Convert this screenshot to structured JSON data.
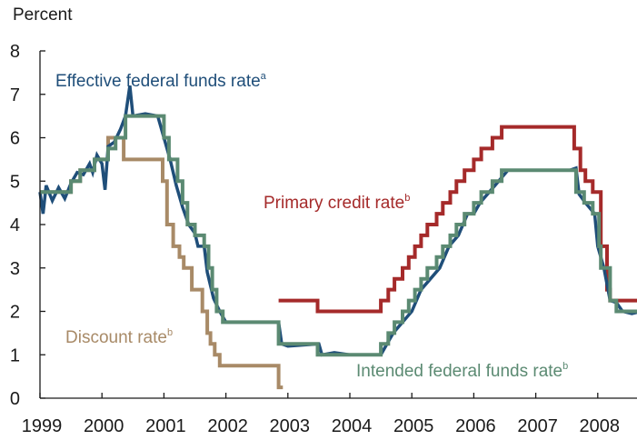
{
  "chart_data": {
    "type": "line",
    "ylabel": "Percent",
    "ylim": [
      0,
      8
    ],
    "xlim": [
      1999,
      2008.75
    ],
    "x_ticks": [
      "1999",
      "2000",
      "2001",
      "2002",
      "2003",
      "2004",
      "2005",
      "2006",
      "2007",
      "2008"
    ],
    "y_ticks": [
      "0",
      "1",
      "2",
      "3",
      "4",
      "5",
      "6",
      "7",
      "8"
    ],
    "grid": false,
    "colors": {
      "effective": "#1f4e79",
      "intended": "#5b8a72",
      "primary": "#a52a2a",
      "discount": "#a88a67"
    },
    "series": [
      {
        "key": "effective",
        "name": "Effective federal funds rate",
        "note": "a",
        "points": [
          [
            1999.0,
            4.75
          ],
          [
            1999.05,
            4.25
          ],
          [
            1999.1,
            4.9
          ],
          [
            1999.2,
            4.55
          ],
          [
            1999.3,
            4.85
          ],
          [
            1999.4,
            4.6
          ],
          [
            1999.5,
            4.95
          ],
          [
            1999.6,
            5.2
          ],
          [
            1999.7,
            5.15
          ],
          [
            1999.8,
            5.4
          ],
          [
            1999.85,
            5.2
          ],
          [
            1999.92,
            5.6
          ],
          [
            2000.0,
            5.4
          ],
          [
            2000.05,
            4.8
          ],
          [
            2000.1,
            5.8
          ],
          [
            2000.2,
            5.9
          ],
          [
            2000.3,
            6.2
          ],
          [
            2000.38,
            6.5
          ],
          [
            2000.45,
            7.2
          ],
          [
            2000.5,
            6.5
          ],
          [
            2000.7,
            6.55
          ],
          [
            2000.9,
            6.5
          ],
          [
            2001.0,
            6.0
          ],
          [
            2001.1,
            5.5
          ],
          [
            2001.2,
            4.9
          ],
          [
            2001.3,
            4.4
          ],
          [
            2001.4,
            4.0
          ],
          [
            2001.5,
            3.8
          ],
          [
            2001.55,
            3.5
          ],
          [
            2001.65,
            3.5
          ],
          [
            2001.7,
            2.9
          ],
          [
            2001.8,
            2.3
          ],
          [
            2001.9,
            2.0
          ],
          [
            2002.0,
            1.75
          ],
          [
            2002.5,
            1.75
          ],
          [
            2002.85,
            1.75
          ],
          [
            2002.9,
            1.25
          ],
          [
            2003.0,
            1.2
          ],
          [
            2003.5,
            1.25
          ],
          [
            2003.55,
            1.0
          ],
          [
            2003.75,
            1.05
          ],
          [
            2004.0,
            1.0
          ],
          [
            2004.5,
            1.0
          ],
          [
            2004.6,
            1.25
          ],
          [
            2004.7,
            1.5
          ],
          [
            2004.85,
            1.75
          ],
          [
            2005.0,
            2.0
          ],
          [
            2005.15,
            2.5
          ],
          [
            2005.3,
            2.75
          ],
          [
            2005.45,
            3.0
          ],
          [
            2005.6,
            3.5
          ],
          [
            2005.75,
            3.75
          ],
          [
            2005.9,
            4.25
          ],
          [
            2006.0,
            4.25
          ],
          [
            2006.1,
            4.5
          ],
          [
            2006.25,
            4.75
          ],
          [
            2006.4,
            5.0
          ],
          [
            2006.55,
            5.25
          ],
          [
            2006.75,
            5.25
          ],
          [
            2007.0,
            5.25
          ],
          [
            2007.3,
            5.25
          ],
          [
            2007.55,
            5.25
          ],
          [
            2007.65,
            5.3
          ],
          [
            2007.7,
            4.7
          ],
          [
            2007.8,
            4.5
          ],
          [
            2007.95,
            4.25
          ],
          [
            2008.0,
            3.5
          ],
          [
            2008.1,
            3.0
          ],
          [
            2008.2,
            2.25
          ],
          [
            2008.3,
            2.2
          ],
          [
            2008.4,
            2.0
          ],
          [
            2008.55,
            1.95
          ],
          [
            2008.7,
            2.0
          ]
        ]
      },
      {
        "key": "intended",
        "name": "Intended federal funds rate",
        "note": "b",
        "points": [
          [
            1999.0,
            4.75
          ],
          [
            1999.5,
            4.75
          ],
          [
            1999.5,
            5.0
          ],
          [
            1999.65,
            5.0
          ],
          [
            1999.65,
            5.25
          ],
          [
            1999.88,
            5.25
          ],
          [
            1999.88,
            5.5
          ],
          [
            2000.1,
            5.5
          ],
          [
            2000.1,
            5.75
          ],
          [
            2000.22,
            5.75
          ],
          [
            2000.22,
            6.0
          ],
          [
            2000.38,
            6.0
          ],
          [
            2000.38,
            6.5
          ],
          [
            2001.0,
            6.5
          ],
          [
            2001.0,
            6.0
          ],
          [
            2001.08,
            6.0
          ],
          [
            2001.08,
            5.5
          ],
          [
            2001.22,
            5.5
          ],
          [
            2001.22,
            5.0
          ],
          [
            2001.3,
            5.0
          ],
          [
            2001.3,
            4.5
          ],
          [
            2001.38,
            4.5
          ],
          [
            2001.38,
            4.0
          ],
          [
            2001.5,
            4.0
          ],
          [
            2001.5,
            3.75
          ],
          [
            2001.65,
            3.75
          ],
          [
            2001.65,
            3.5
          ],
          [
            2001.72,
            3.5
          ],
          [
            2001.72,
            3.0
          ],
          [
            2001.78,
            3.0
          ],
          [
            2001.78,
            2.5
          ],
          [
            2001.85,
            2.5
          ],
          [
            2001.85,
            2.0
          ],
          [
            2001.95,
            2.0
          ],
          [
            2001.95,
            1.75
          ],
          [
            2002.85,
            1.75
          ],
          [
            2002.85,
            1.25
          ],
          [
            2003.48,
            1.25
          ],
          [
            2003.48,
            1.0
          ],
          [
            2004.5,
            1.0
          ],
          [
            2004.5,
            1.25
          ],
          [
            2004.62,
            1.25
          ],
          [
            2004.62,
            1.5
          ],
          [
            2004.72,
            1.5
          ],
          [
            2004.72,
            1.75
          ],
          [
            2004.85,
            1.75
          ],
          [
            2004.85,
            2.0
          ],
          [
            2004.95,
            2.0
          ],
          [
            2004.95,
            2.25
          ],
          [
            2005.05,
            2.25
          ],
          [
            2005.05,
            2.5
          ],
          [
            2005.15,
            2.5
          ],
          [
            2005.15,
            2.75
          ],
          [
            2005.25,
            2.75
          ],
          [
            2005.25,
            3.0
          ],
          [
            2005.4,
            3.0
          ],
          [
            2005.4,
            3.25
          ],
          [
            2005.5,
            3.25
          ],
          [
            2005.5,
            3.5
          ],
          [
            2005.62,
            3.5
          ],
          [
            2005.62,
            3.75
          ],
          [
            2005.72,
            3.75
          ],
          [
            2005.72,
            4.0
          ],
          [
            2005.85,
            4.0
          ],
          [
            2005.85,
            4.25
          ],
          [
            2006.0,
            4.25
          ],
          [
            2006.0,
            4.5
          ],
          [
            2006.12,
            4.5
          ],
          [
            2006.12,
            4.75
          ],
          [
            2006.3,
            4.75
          ],
          [
            2006.3,
            5.0
          ],
          [
            2006.45,
            5.0
          ],
          [
            2006.45,
            5.25
          ],
          [
            2007.65,
            5.25
          ],
          [
            2007.65,
            4.75
          ],
          [
            2007.78,
            4.75
          ],
          [
            2007.78,
            4.5
          ],
          [
            2007.92,
            4.5
          ],
          [
            2007.92,
            4.25
          ],
          [
            2008.02,
            4.25
          ],
          [
            2008.02,
            3.5
          ],
          [
            2008.05,
            3.5
          ],
          [
            2008.05,
            3.0
          ],
          [
            2008.2,
            3.0
          ],
          [
            2008.2,
            2.25
          ],
          [
            2008.3,
            2.25
          ],
          [
            2008.3,
            2.0
          ],
          [
            2008.75,
            2.0
          ]
        ]
      },
      {
        "key": "primary",
        "name": "Primary credit rate",
        "note": "b",
        "points": [
          [
            2002.85,
            2.25
          ],
          [
            2003.48,
            2.25
          ],
          [
            2003.48,
            2.0
          ],
          [
            2004.5,
            2.0
          ],
          [
            2004.5,
            2.25
          ],
          [
            2004.62,
            2.25
          ],
          [
            2004.62,
            2.5
          ],
          [
            2004.72,
            2.5
          ],
          [
            2004.72,
            2.75
          ],
          [
            2004.85,
            2.75
          ],
          [
            2004.85,
            3.0
          ],
          [
            2004.95,
            3.0
          ],
          [
            2004.95,
            3.25
          ],
          [
            2005.05,
            3.25
          ],
          [
            2005.05,
            3.5
          ],
          [
            2005.15,
            3.5
          ],
          [
            2005.15,
            3.75
          ],
          [
            2005.25,
            3.75
          ],
          [
            2005.25,
            4.0
          ],
          [
            2005.4,
            4.0
          ],
          [
            2005.4,
            4.25
          ],
          [
            2005.5,
            4.25
          ],
          [
            2005.5,
            4.5
          ],
          [
            2005.62,
            4.5
          ],
          [
            2005.62,
            4.75
          ],
          [
            2005.72,
            4.75
          ],
          [
            2005.72,
            5.0
          ],
          [
            2005.85,
            5.0
          ],
          [
            2005.85,
            5.25
          ],
          [
            2006.0,
            5.25
          ],
          [
            2006.0,
            5.5
          ],
          [
            2006.12,
            5.5
          ],
          [
            2006.12,
            5.75
          ],
          [
            2006.3,
            5.75
          ],
          [
            2006.3,
            6.0
          ],
          [
            2006.45,
            6.0
          ],
          [
            2006.45,
            6.25
          ],
          [
            2007.62,
            6.25
          ],
          [
            2007.62,
            5.75
          ],
          [
            2007.72,
            5.75
          ],
          [
            2007.72,
            5.25
          ],
          [
            2007.8,
            5.25
          ],
          [
            2007.8,
            5.0
          ],
          [
            2007.92,
            5.0
          ],
          [
            2007.92,
            4.75
          ],
          [
            2008.05,
            4.75
          ],
          [
            2008.05,
            3.5
          ],
          [
            2008.15,
            3.5
          ],
          [
            2008.15,
            2.5
          ],
          [
            2008.2,
            2.5
          ],
          [
            2008.2,
            2.25
          ],
          [
            2008.75,
            2.25
          ]
        ]
      },
      {
        "key": "discount",
        "name": "Discount rate",
        "note": "b",
        "points": [
          [
            1999.0,
            4.75
          ],
          [
            1999.5,
            4.75
          ],
          [
            1999.5,
            5.0
          ],
          [
            1999.65,
            5.0
          ],
          [
            1999.65,
            5.25
          ],
          [
            1999.88,
            5.25
          ],
          [
            1999.88,
            5.5
          ],
          [
            2000.1,
            5.5
          ],
          [
            2000.1,
            6.0
          ],
          [
            2000.35,
            6.0
          ],
          [
            2000.35,
            5.5
          ],
          [
            2000.98,
            5.5
          ],
          [
            2000.98,
            5.0
          ],
          [
            2001.05,
            5.0
          ],
          [
            2001.05,
            4.0
          ],
          [
            2001.15,
            4.0
          ],
          [
            2001.15,
            3.5
          ],
          [
            2001.25,
            3.5
          ],
          [
            2001.25,
            3.25
          ],
          [
            2001.32,
            3.25
          ],
          [
            2001.32,
            3.0
          ],
          [
            2001.45,
            3.0
          ],
          [
            2001.45,
            2.5
          ],
          [
            2001.62,
            2.5
          ],
          [
            2001.62,
            2.0
          ],
          [
            2001.7,
            2.0
          ],
          [
            2001.7,
            1.5
          ],
          [
            2001.75,
            1.5
          ],
          [
            2001.75,
            1.25
          ],
          [
            2001.82,
            1.25
          ],
          [
            2001.82,
            1.0
          ],
          [
            2001.9,
            1.0
          ],
          [
            2001.9,
            0.75
          ],
          [
            2002.85,
            0.75
          ],
          [
            2002.85,
            0.25
          ],
          [
            2002.92,
            0.25
          ]
        ]
      }
    ]
  }
}
